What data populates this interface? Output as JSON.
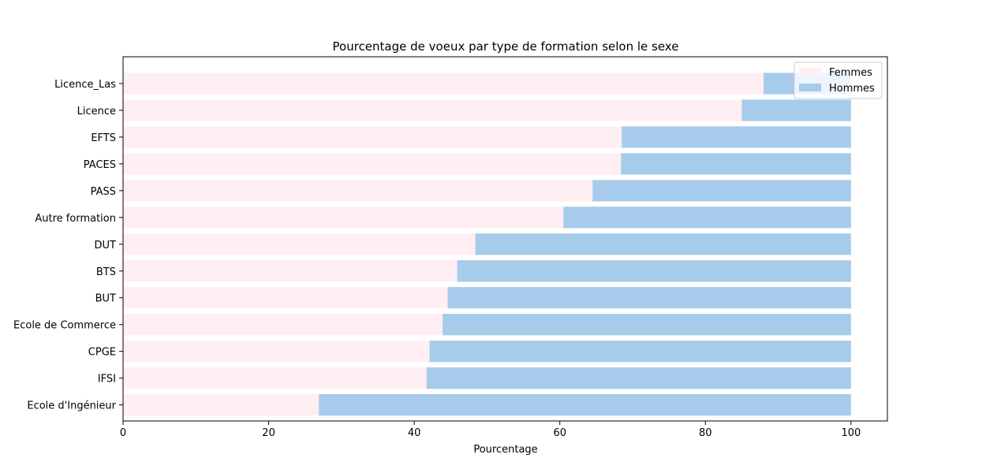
{
  "chart_data": {
    "type": "bar",
    "orientation": "horizontal",
    "stacked": true,
    "title": "Pourcentage de voeux par type de formation selon le sexe",
    "xlabel": "Pourcentage",
    "ylabel": "",
    "xlim": [
      0,
      105
    ],
    "x_ticks": [
      0,
      20,
      40,
      60,
      80,
      100
    ],
    "grid": false,
    "legend_position": "top-right",
    "categories": [
      "Licence_Las",
      "Licence",
      "EFTS",
      "PACES",
      "PASS",
      "Autre formation",
      "DUT",
      "BTS",
      "BUT",
      "Ecole de Commerce",
      "CPGE",
      "IFSI",
      "Ecole d'Ingénieur"
    ],
    "series": [
      {
        "name": "Femmes",
        "color": "#ffeef2",
        "values": [
          88.0,
          85.0,
          68.5,
          68.4,
          64.5,
          60.5,
          48.4,
          45.9,
          44.6,
          43.9,
          42.1,
          41.7,
          26.9
        ]
      },
      {
        "name": "Hommes",
        "color": "#a6cbeb",
        "values": [
          12.0,
          15.0,
          31.5,
          31.6,
          35.5,
          39.5,
          51.6,
          54.1,
          55.4,
          56.1,
          57.9,
          58.3,
          73.1
        ]
      }
    ]
  }
}
